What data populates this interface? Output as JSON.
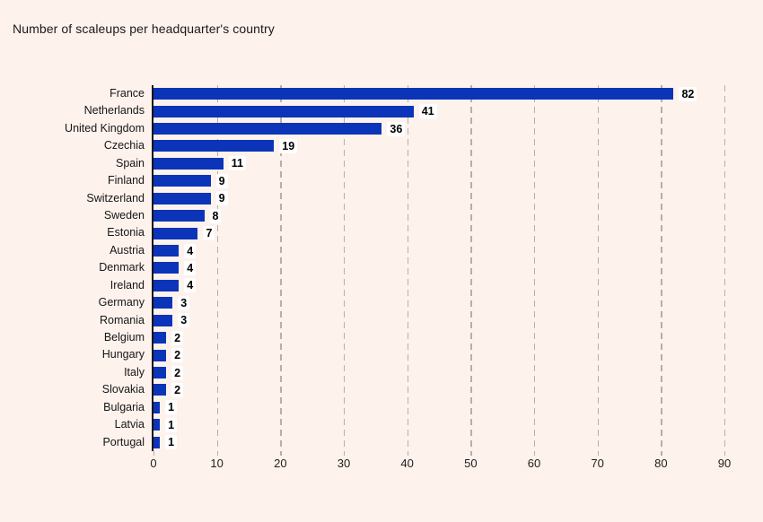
{
  "title": "Number of scaleups per headquarter's country",
  "colors": {
    "background": "#fdf2ec",
    "bar": "#0b34b9",
    "grid": "#b6afab",
    "axis": "#141414",
    "text": "#1a1a1a",
    "value_label_background": "#ffffff"
  },
  "chart_data": {
    "type": "bar",
    "orientation": "horizontal",
    "title": "Number of scaleups per headquarter's country",
    "categories": [
      "France",
      "Netherlands",
      "United Kingdom",
      "Czechia",
      "Spain",
      "Finland",
      "Switzerland",
      "Sweden",
      "Estonia",
      "Austria",
      "Denmark",
      "Ireland",
      "Germany",
      "Romania",
      "Belgium",
      "Hungary",
      "Italy",
      "Slovakia",
      "Bulgaria",
      "Latvia",
      "Portugal"
    ],
    "values": [
      82,
      41,
      36,
      19,
      11,
      9,
      9,
      8,
      7,
      4,
      4,
      4,
      3,
      3,
      2,
      2,
      2,
      2,
      1,
      1,
      1
    ],
    "xlabel": "",
    "ylabel": "",
    "xlim": [
      0,
      92
    ],
    "xticks": [
      0,
      10,
      20,
      30,
      40,
      50,
      60,
      70,
      80,
      90
    ],
    "grid": true,
    "grid_style": "dashed-vertical",
    "legend": false,
    "value_labels": "outside-end-bold-white-box"
  }
}
